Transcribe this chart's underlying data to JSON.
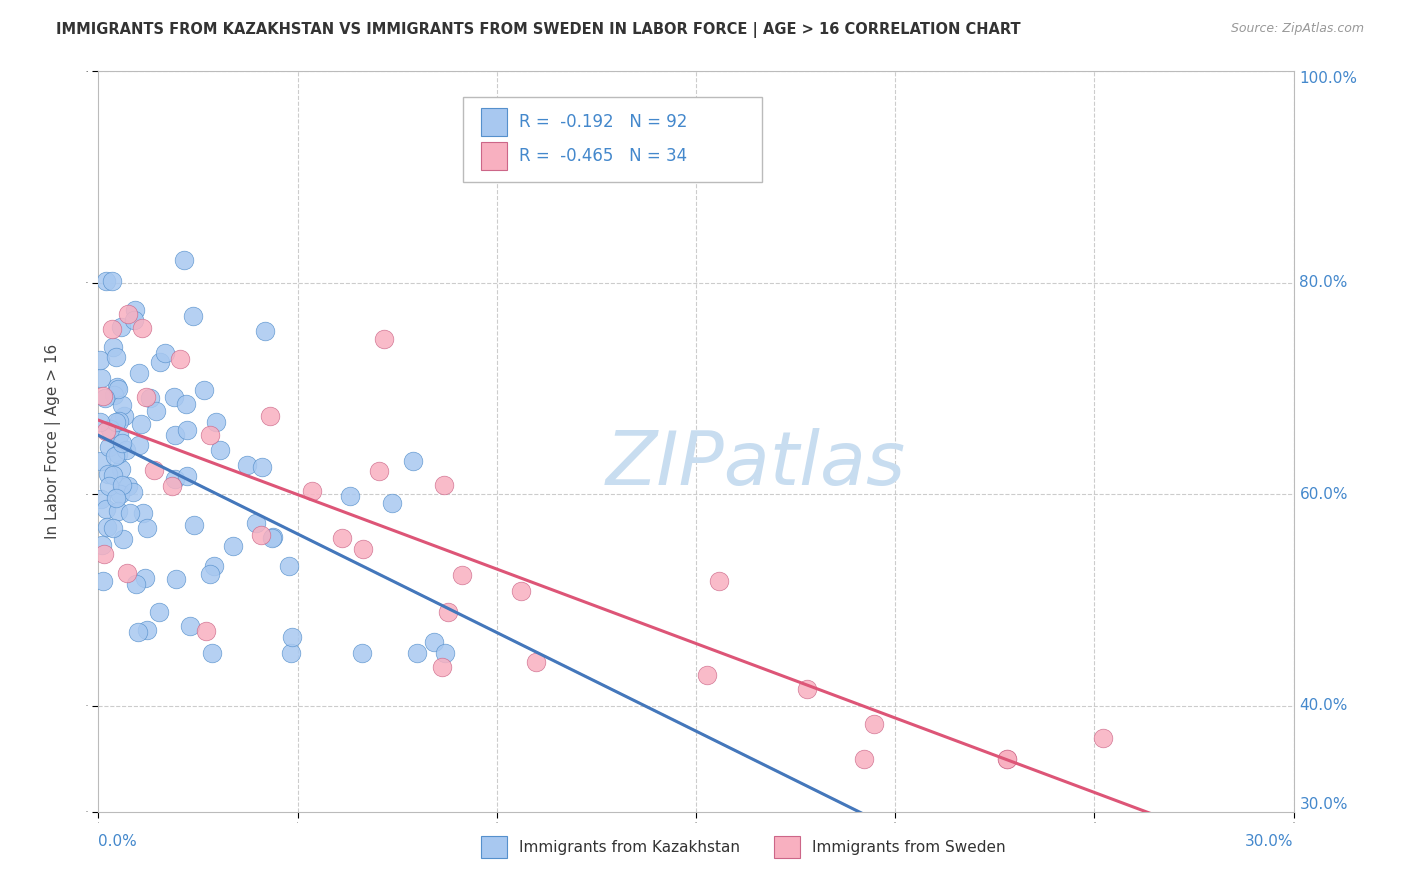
{
  "title": "IMMIGRANTS FROM KAZAKHSTAN VS IMMIGRANTS FROM SWEDEN IN LABOR FORCE | AGE > 16 CORRELATION CHART",
  "source": "Source: ZipAtlas.com",
  "ylabel": "In Labor Force | Age > 16",
  "xlim": [
    0.0,
    30.0
  ],
  "ylim": [
    30.0,
    100.0
  ],
  "series": [
    {
      "label": "Immigrants from Kazakhstan",
      "R": -0.192,
      "N": 92,
      "color": "#a8c8f0",
      "edge_color": "#5590cc",
      "line_color": "#4477bb",
      "line_style": "solid"
    },
    {
      "label": "Immigrants from Sweden",
      "R": -0.465,
      "N": 34,
      "color": "#f8b0c0",
      "edge_color": "#cc6688",
      "line_color": "#dd5577",
      "line_style": "solid"
    }
  ],
  "watermark_text": "ZIPatlas",
  "watermark_color": "#c8ddf0",
  "background_color": "#ffffff",
  "grid_color": "#cccccc",
  "axis_label_color": "#4488cc",
  "legend_text_color": "#4488cc",
  "title_color": "#333333",
  "source_color": "#999999"
}
